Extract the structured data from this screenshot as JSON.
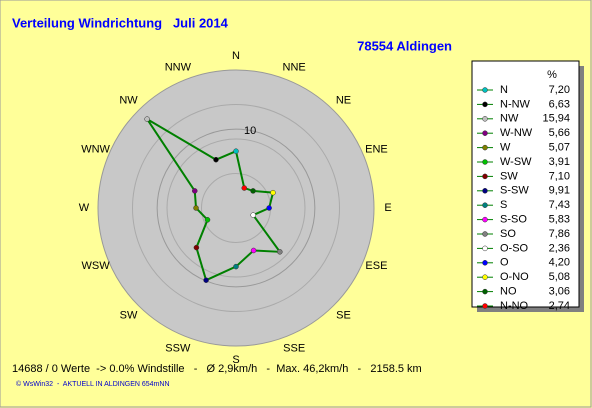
{
  "chart_data": {
    "type": "radar",
    "title": "Verteilung Windrichtung   Juli 2014",
    "subtitle": "78554 Aldingen",
    "direction_labels": [
      "N",
      "NNE",
      "NE",
      "ENE",
      "E",
      "ESE",
      "SE",
      "SSE",
      "S",
      "SSW",
      "SW",
      "WSW",
      "W",
      "WNW",
      "NW",
      "NNW"
    ],
    "legend_header": "%",
    "categories": [
      "N",
      "N-NW",
      "NW",
      "W-NW",
      "W",
      "W-SW",
      "SW",
      "S-SW",
      "S",
      "S-SO",
      "SO",
      "O-SO",
      "O",
      "O-NO",
      "NO",
      "N-NO"
    ],
    "values": [
      7.2,
      6.63,
      15.94,
      5.66,
      5.07,
      3.91,
      7.1,
      9.91,
      7.43,
      5.83,
      7.86,
      2.36,
      4.2,
      5.08,
      3.06,
      2.74
    ],
    "value_labels": [
      "7,20",
      "6,63",
      "15,94",
      "5,66",
      "5,07",
      "3,91",
      "7,10",
      "9,91",
      "7,43",
      "5,83",
      "7,86",
      "2,36",
      "4,20",
      "5,08",
      "3,06",
      "2,74"
    ],
    "colors": [
      "#00c0c0",
      "#000000",
      "#c0c0c0",
      "#800080",
      "#808000",
      "#00c000",
      "#800000",
      "#000080",
      "#008080",
      "#ff00ff",
      "#808080",
      "#ffffff",
      "#0000ff",
      "#ffff00",
      "#006000",
      "#ff0000"
    ],
    "line_color": "#008000",
    "rlim": [
      0,
      17.5
    ],
    "rticks": [
      10
    ],
    "footer": "14688 / 0 Werte  -> 0.0% Windstille   -   Ø 2,9km/h   -  Max. 46,2km/h   -   2158.5 km",
    "credit": "© WsWin32  -  AKTUELL IN ALDINGEN 654mNN"
  }
}
